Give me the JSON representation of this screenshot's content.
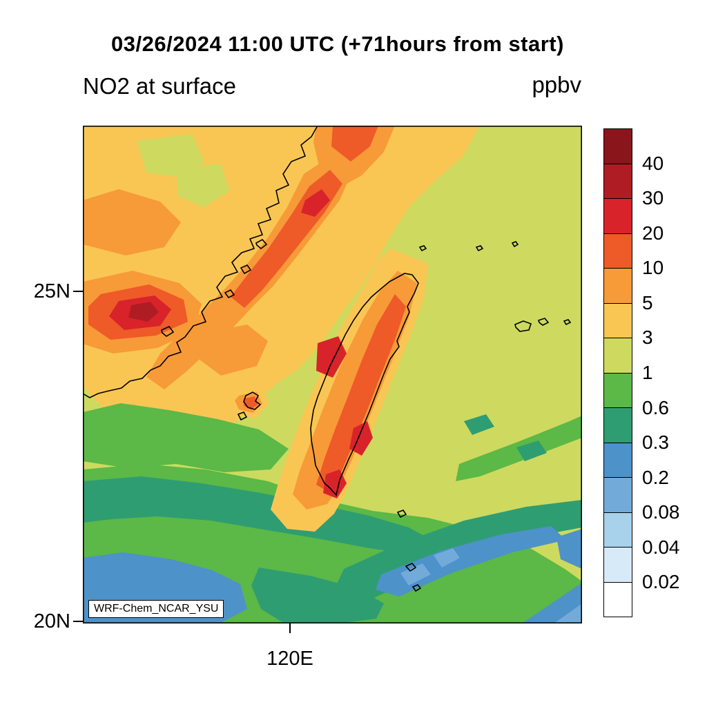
{
  "title": "03/26/2024 11:00 UTC (+71hours from start)",
  "plot": {
    "variable_label": "NO2 at surface",
    "units_label": "ppbv",
    "model_label": "WRF-Chem_NCAR_YSU"
  },
  "axes": {
    "y_ticks": [
      "25N",
      "20N"
    ],
    "x_ticks": [
      "120E"
    ]
  },
  "colorbar": {
    "labels_top_to_bottom": [
      "40",
      "30",
      "20",
      "10",
      "5",
      "3",
      "1",
      "0.6",
      "0.3",
      "0.2",
      "0.08",
      "0.04",
      "0.02"
    ],
    "colors_top_to_bottom": [
      "#8a161c",
      "#b01c24",
      "#d8232a",
      "#ee5a28",
      "#f79a38",
      "#f9c653",
      "#cdda5f",
      "#5cb847",
      "#2f9d72",
      "#4d92c8",
      "#72abd9",
      "#a8d2ec",
      "#d7eaf8",
      "#ffffff"
    ]
  },
  "chart_data": {
    "type": "heatmap",
    "title": "03/26/2024 11:00 UTC (+71hours from start)",
    "variable": "NO2 at surface",
    "units": "ppbv",
    "model_run": "WRF-Chem_NCAR_YSU",
    "x_tick_labels": [
      "120E"
    ],
    "y_tick_labels": [
      "25N",
      "20N"
    ],
    "contour_levels": [
      0.02,
      0.04,
      0.08,
      0.2,
      0.3,
      0.6,
      1,
      3,
      5,
      10,
      20,
      30,
      40
    ],
    "level_colors_low_to_high": [
      "#ffffff",
      "#d7eaf8",
      "#a8d2ec",
      "#72abd9",
      "#4d92c8",
      "#2f9d72",
      "#5cb847",
      "#cdda5f",
      "#f9c653",
      "#f79a38",
      "#ee5a28",
      "#d8232a",
      "#b01c24",
      "#8a161c"
    ],
    "legend_position": "right",
    "observations": [
      "High NO2 (5 to >20 ppbv) along the southeast China coast northwest of the coastline",
      "Local maxima (20-40 ppbv) near coastal cities around 25N and along western Taiwan",
      "Background values of 1-3 ppbv over most of the domain",
      "Bands of 0.3-1 ppbv across the southern part of the domain",
      "Lowest values (0.08-0.3 ppbv) over the ocean southeast of Taiwan"
    ]
  }
}
